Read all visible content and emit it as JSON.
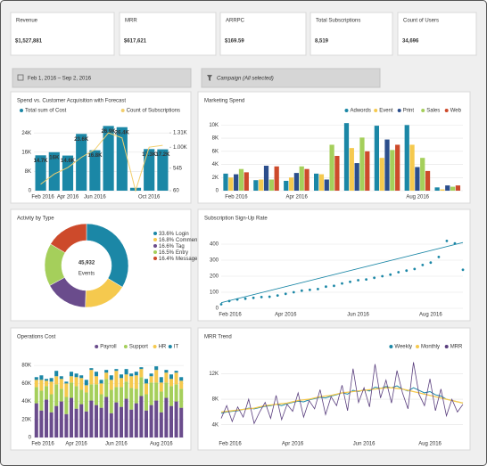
{
  "kpis": [
    {
      "label": "Revenue",
      "value": "$1,527,881"
    },
    {
      "label": "MRR",
      "value": "$617,621"
    },
    {
      "label": "ARRPC",
      "value": "$169.59"
    },
    {
      "label": "Total Subscriptions",
      "value": "8,519"
    },
    {
      "label": "Count of Users",
      "value": "34,696"
    }
  ],
  "filters": {
    "date_range": "Feb 1, 2016 – Sep 2, 2016",
    "campaign": "Campaign (All selected)"
  },
  "chart_data": [
    {
      "type": "bar",
      "title": "Spend vs. Customer Acquisition with Forecast",
      "legend": "top",
      "grid": true,
      "categories": [
        "Feb 2016",
        null,
        "Apr 2016",
        null,
        "Jun 2016",
        null,
        null,
        null,
        "Oct 2016",
        null
      ],
      "series": [
        {
          "name": "Total sum of Cost",
          "color": "#1b87a6",
          "values": [
            14700,
            16000,
            14600,
            23600,
            16800,
            26900,
            26400,
            1200,
            17300,
            17200
          ],
          "value_labels": [
            "14.7K",
            "16K",
            "14.6K",
            "23.6K",
            "16.8K",
            "26.9K",
            "26.4K",
            null,
            "17.3K",
            "17.2K"
          ]
        },
        {
          "name": "Count of Subscriptions",
          "type": "line",
          "axis": "y2",
          "color": "#f2cf6e",
          "values": [
            200,
            420,
            560,
            780,
            950,
            1310,
            1200,
            60,
            1000,
            1040
          ]
        }
      ],
      "ylim": [
        0,
        30000
      ],
      "yticks": [
        0,
        {
          "value": 8000,
          "label": "8K"
        },
        {
          "value": 16000,
          "label": "16K"
        },
        {
          "value": 24000,
          "label": "24K"
        }
      ],
      "y2lim": [
        60,
        1620
      ],
      "y2ticks": [
        60,
        545,
        {
          "value": 1000,
          "label": "1.00K"
        },
        {
          "value": 1310,
          "label": "1.31K"
        }
      ]
    },
    {
      "type": "bar",
      "title": "Marketing Spend",
      "legend": "top-right",
      "grid": true,
      "categories": [
        "Feb 2016",
        null,
        "Apr 2016",
        null,
        null,
        null,
        "Aug 2016",
        null
      ],
      "series": [
        {
          "name": "Adwords",
          "color": "#1b87a6",
          "values": [
            2600,
            1600,
            1500,
            2600,
            10300,
            9900,
            10000,
            500
          ]
        },
        {
          "name": "Event",
          "color": "#f5c94e",
          "values": [
            2000,
            1700,
            2000,
            2500,
            6500,
            5000,
            7000,
            200
          ]
        },
        {
          "name": "Print",
          "color": "#2b4e8c",
          "values": [
            2500,
            3800,
            2700,
            1700,
            4200,
            7800,
            3600,
            800
          ]
        },
        {
          "name": "Sales",
          "color": "#a5cf5b",
          "values": [
            3300,
            1700,
            3700,
            7000,
            8100,
            6200,
            5000,
            600
          ]
        },
        {
          "name": "Web",
          "color": "#cd4a2b",
          "values": [
            2800,
            3700,
            3300,
            5300,
            6000,
            7000,
            3000,
            800
          ]
        }
      ],
      "ylim": [
        0,
        11000
      ],
      "yticks": [
        0,
        {
          "value": 2000,
          "label": "2K"
        },
        {
          "value": 4000,
          "label": "4K"
        },
        {
          "value": 6000,
          "label": "6K"
        },
        {
          "value": 8000,
          "label": "8K"
        },
        {
          "value": 10000,
          "label": "10K"
        }
      ]
    },
    {
      "type": "pie",
      "title": "Activity by Type",
      "legend": "right",
      "center_label": "45,932",
      "center_sublabel": "Events",
      "categories": [
        "Login",
        "Comment",
        "Tag",
        "Entry",
        "Message"
      ],
      "values": [
        33.6,
        16.8,
        16.6,
        16.5,
        16.4
      ],
      "value_labels": [
        "33.6%",
        "16.8%",
        "16.6%",
        "16.5%",
        "16.4%"
      ],
      "colors": [
        "#1b87a6",
        "#f5c94e",
        "#6a4c8c",
        "#a5cf5b",
        "#cd4a2b"
      ]
    },
    {
      "type": "scatter",
      "title": "Subscription Sign-Up Rate",
      "grid": true,
      "color": "#1b87a6",
      "categories": [
        "Feb 2016",
        null,
        null,
        null,
        null,
        null,
        null,
        null,
        "Apr 2016",
        null,
        null,
        null,
        null,
        null,
        null,
        null,
        null,
        "Jun 2016",
        null,
        null,
        null,
        null,
        null,
        null,
        null,
        null,
        "Aug 2016",
        null,
        null,
        null,
        null
      ],
      "values": [
        25,
        45,
        55,
        60,
        65,
        70,
        72,
        80,
        90,
        100,
        110,
        115,
        120,
        135,
        140,
        155,
        165,
        175,
        180,
        190,
        200,
        210,
        225,
        235,
        245,
        270,
        285,
        320,
        420,
        405,
        240
      ],
      "trend": [
        35,
        410
      ],
      "ylim": [
        0,
        450
      ],
      "yticks": [
        0,
        100,
        200,
        300,
        400
      ]
    },
    {
      "type": "bar",
      "title": "Operations Cost",
      "legend": "top-right",
      "grid": true,
      "stacked": true,
      "categories": [
        "Feb 2016",
        null,
        null,
        null,
        null,
        null,
        null,
        null,
        "Apr 2016",
        null,
        null,
        null,
        null,
        null,
        null,
        null,
        "Jun 2016",
        null,
        null,
        null,
        null,
        null,
        null,
        null,
        null,
        "Aug 2016",
        null,
        null,
        null,
        null
      ],
      "series": [
        {
          "name": "Payroll",
          "color": "#6a4c8c",
          "values": [
            38000,
            30000,
            42000,
            28000,
            35000,
            40000,
            26000,
            44000,
            32000,
            37000,
            29000,
            41000,
            36000,
            33000,
            45000,
            27000,
            39000,
            34000,
            43000,
            31000,
            38000,
            46000,
            30000,
            36000,
            41000,
            28000,
            44000,
            35000,
            40000,
            33000
          ]
        },
        {
          "name": "Support",
          "color": "#a5cf5b",
          "values": [
            18000,
            22000,
            15000,
            20000,
            24000,
            14000,
            19000,
            17000,
            25000,
            16000,
            21000,
            18000,
            23000,
            15000,
            20000,
            26000,
            17000,
            22000,
            19000,
            24000,
            16000,
            21000,
            18000,
            25000,
            20000,
            23000,
            17000,
            22000,
            19000,
            21000
          ]
        },
        {
          "name": "HR",
          "color": "#f5c94e",
          "values": [
            8000,
            12000,
            6000,
            14000,
            9000,
            11000,
            15000,
            7000,
            10000,
            13000,
            8000,
            16000,
            9000,
            12000,
            7000,
            11000,
            18000,
            10000,
            8000,
            13000,
            15000,
            9000,
            12000,
            7000,
            14000,
            10000,
            11000,
            8000,
            13000,
            9000
          ]
        },
        {
          "name": "IT",
          "color": "#1b87a6",
          "values": [
            3000,
            5000,
            2000,
            4000,
            6000,
            3000,
            2000,
            5000,
            4000,
            3000,
            6000,
            2000,
            5000,
            4000,
            3000,
            5000,
            2000,
            4000,
            6000,
            3000,
            4000,
            2000,
            5000,
            3000,
            4000,
            6000,
            3000,
            5000,
            2000,
            4000
          ]
        }
      ],
      "ylim": [
        0,
        92000
      ],
      "yticks": [
        0,
        {
          "value": 20000,
          "label": "20K"
        },
        {
          "value": 40000,
          "label": "40K"
        },
        {
          "value": 60000,
          "label": "60K"
        },
        {
          "value": 80000,
          "label": "80K"
        }
      ]
    },
    {
      "type": "line",
      "title": "MRR Trend",
      "legend": "top-right",
      "grid": true,
      "categories": [
        "Feb 2016",
        null,
        null,
        null,
        null,
        null,
        null,
        null,
        null,
        null,
        null,
        null,
        null,
        "Apr 2016",
        null,
        null,
        null,
        null,
        null,
        null,
        null,
        null,
        null,
        null,
        null,
        null,
        "Jun 2016",
        null,
        null,
        null,
        null,
        null,
        null,
        null,
        null,
        null,
        null,
        null,
        "Aug 2016",
        null,
        null,
        null,
        null,
        null,
        null
      ],
      "series": [
        {
          "name": "Weekly",
          "color": "#1b87a6",
          "width": 1,
          "values": [
            5800,
            6000,
            6100,
            6200,
            6400,
            6600,
            6500,
            6700,
            6900,
            7000,
            7200,
            7000,
            7300,
            7500,
            7700,
            7600,
            7900,
            8100,
            8300,
            8200,
            8500,
            8700,
            9000,
            8800,
            9400,
            9200,
            9500,
            9300,
            9900,
            9700,
            10000,
            9800,
            10100,
            9600,
            9300,
            9800,
            9400,
            9000,
            9200,
            8700,
            8500,
            8000,
            7800,
            7600,
            7400
          ]
        },
        {
          "name": "Monthly",
          "color": "#f5c94e",
          "width": 1.3,
          "values": [
            6000,
            6100,
            6200,
            6300,
            6400,
            6500,
            6600,
            6800,
            7000,
            7100,
            7200,
            7300,
            7400,
            7600,
            7800,
            7900,
            8000,
            8200,
            8400,
            8500,
            8600,
            8800,
            9000,
            9100,
            9200,
            9300,
            9400,
            9500,
            9600,
            9700,
            9800,
            9800,
            9700,
            9600,
            9400,
            9200,
            9000,
            8800,
            8600,
            8400,
            8200,
            8000,
            7800,
            7600,
            7400
          ]
        },
        {
          "name": "MRR",
          "color": "#5a3f7e",
          "width": 0.8,
          "values": [
            5000,
            7000,
            4500,
            6800,
            5200,
            8000,
            4200,
            6000,
            7500,
            5000,
            8600,
            4800,
            7200,
            6100,
            9000,
            5200,
            7800,
            6500,
            9500,
            5600,
            8400,
            7000,
            10200,
            6200,
            12800,
            7500,
            9800,
            6800,
            13500,
            8200,
            11000,
            7400,
            12500,
            9000,
            6500,
            13800,
            8800,
            7000,
            11200,
            6200,
            9600,
            5400,
            8000,
            6000,
            7200
          ]
        }
      ],
      "ylim": [
        2000,
        15000
      ],
      "yticks": [
        {
          "value": 4000,
          "label": "4K"
        },
        {
          "value": 8000,
          "label": "8K"
        },
        {
          "value": 12000,
          "label": "12K"
        }
      ]
    }
  ]
}
